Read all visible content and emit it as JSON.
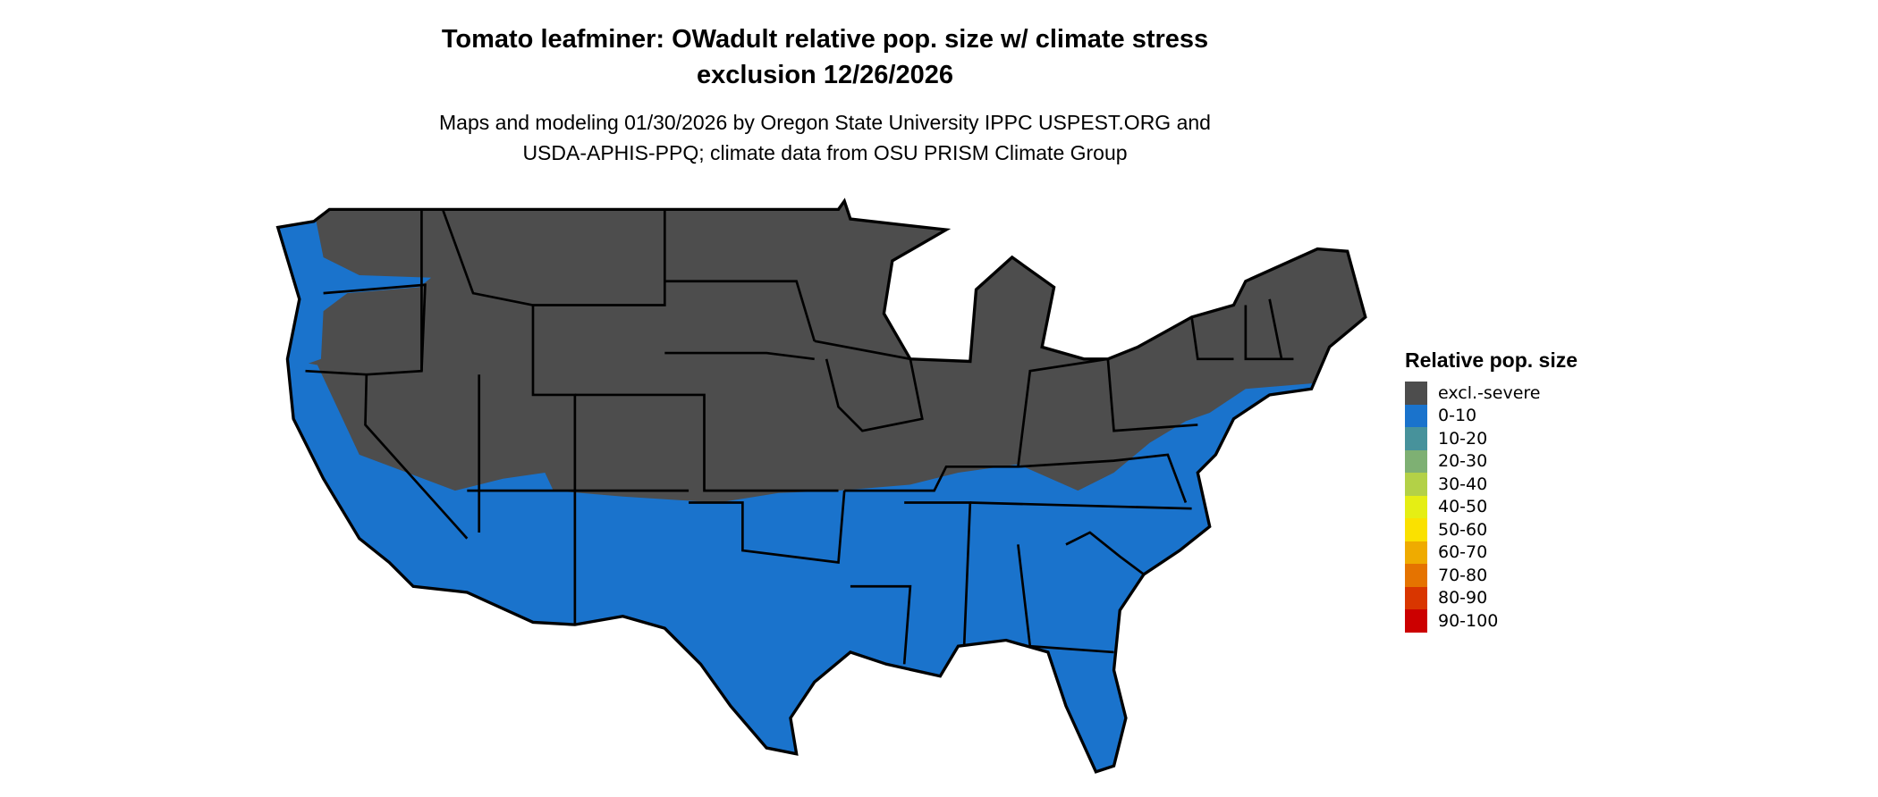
{
  "title": {
    "line1": "Tomato leafminer: OWadult relative pop. size w/ climate stress",
    "line2": "exclusion 12/26/2026"
  },
  "subtitle": {
    "line1": "Maps and modeling 01/30/2026 by Oregon State University IPPC USPEST.ORG and",
    "line2": "USDA-APHIS-PPQ; climate data from OSU PRISM Climate Group"
  },
  "legend": {
    "title": "Relative pop. size",
    "items": [
      {
        "label": "excl.-severe",
        "color": "#4d4d4d"
      },
      {
        "label": "0-10",
        "color": "#1a73cc"
      },
      {
        "label": "10-20",
        "color": "#47929b"
      },
      {
        "label": "20-30",
        "color": "#7eb073"
      },
      {
        "label": "30-40",
        "color": "#b3d147"
      },
      {
        "label": "40-50",
        "color": "#e5ee14"
      },
      {
        "label": "50-60",
        "color": "#fae100"
      },
      {
        "label": "60-70",
        "color": "#efab00"
      },
      {
        "label": "70-80",
        "color": "#e57300"
      },
      {
        "label": "80-90",
        "color": "#d93600"
      },
      {
        "label": "90-100",
        "color": "#cc0000"
      }
    ]
  },
  "map": {
    "region": "Contiguous United States",
    "excluded_color": "#4d4d4d",
    "present_color": "#1a73cc",
    "border_color": "#000000"
  }
}
